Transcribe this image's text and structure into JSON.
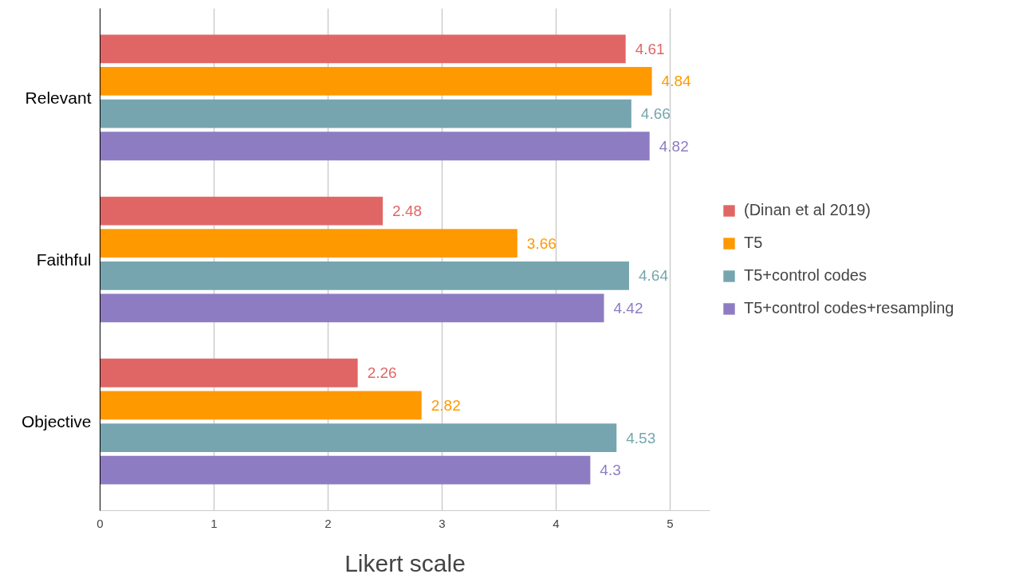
{
  "chart_data": {
    "type": "bar",
    "orientation": "horizontal",
    "xlabel": "Likert scale",
    "categories": [
      "Relevant",
      "Faithful",
      "Objective"
    ],
    "series": [
      {
        "name": "(Dinan et al 2019)",
        "color": "#e06666",
        "values": [
          4.61,
          2.48,
          2.26
        ]
      },
      {
        "name": "T5",
        "color": "#ff9900",
        "values": [
          4.84,
          3.66,
          2.82
        ]
      },
      {
        "name": "T5+control codes",
        "color": "#76a5af",
        "values": [
          4.66,
          4.64,
          4.53
        ]
      },
      {
        "name": "T5+control codes+resampling",
        "color": "#8e7cc3",
        "values": [
          4.82,
          4.42,
          4.3
        ]
      }
    ],
    "xlim": [
      0,
      5.35
    ],
    "xticks": [
      0,
      1,
      2,
      3,
      4,
      5
    ],
    "grid": "x",
    "legend": "right",
    "data_labels": true
  }
}
